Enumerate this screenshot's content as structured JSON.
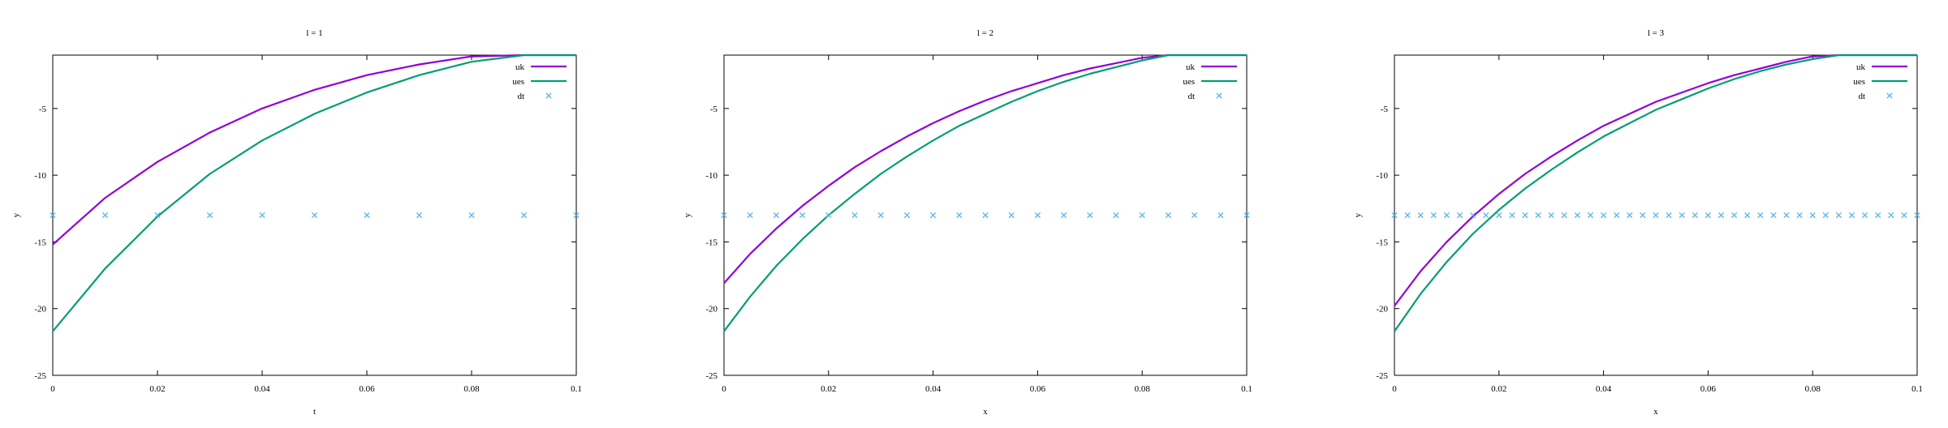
{
  "chart_data": [
    {
      "type": "line",
      "title": "l = 1",
      "xlabel": "t",
      "ylabel": "y",
      "xlim": [
        0,
        0.1
      ],
      "ylim": [
        -25,
        -1
      ],
      "xticks": [
        0,
        0.02,
        0.04,
        0.06,
        0.08,
        0.1
      ],
      "xtick_labels": [
        "0",
        "0.02",
        "0.04",
        "0.06",
        "0.08",
        "0.1"
      ],
      "yticks": [
        -25,
        -20,
        -15,
        -10,
        -5
      ],
      "ytick_labels": [
        "-25",
        "-20",
        "-15",
        "-10",
        "-5"
      ],
      "legend_position": "top-right",
      "series": [
        {
          "name": "uk",
          "kind": "line",
          "color": "#9400d3",
          "x": [
            0,
            0.01,
            0.02,
            0.03,
            0.04,
            0.05,
            0.06,
            0.07,
            0.08,
            0.09,
            0.1
          ],
          "y": [
            -15.2,
            -11.7,
            -9.0,
            -6.8,
            -5.0,
            -3.6,
            -2.5,
            -1.7,
            -1.1,
            -1.0,
            -1.0
          ]
        },
        {
          "name": "ues",
          "kind": "line",
          "color": "#009e73",
          "x": [
            0,
            0.01,
            0.02,
            0.03,
            0.04,
            0.05,
            0.06,
            0.07,
            0.08,
            0.09,
            0.1
          ],
          "y": [
            -21.7,
            -17.0,
            -13.1,
            -9.9,
            -7.4,
            -5.4,
            -3.8,
            -2.5,
            -1.5,
            -1.0,
            -1.0
          ]
        },
        {
          "name": "dt",
          "kind": "points",
          "color": "#56b4e9",
          "x": [
            0,
            0.01,
            0.02,
            0.03,
            0.04,
            0.05,
            0.06,
            0.07,
            0.08,
            0.09,
            0.1
          ],
          "y": [
            -13,
            -13,
            -13,
            -13,
            -13,
            -13,
            -13,
            -13,
            -13,
            -13,
            -13
          ]
        }
      ]
    },
    {
      "type": "line",
      "title": "l = 2",
      "xlabel": "x",
      "ylabel": "y",
      "xlim": [
        0,
        0.1
      ],
      "ylim": [
        -25,
        -1
      ],
      "xticks": [
        0,
        0.02,
        0.04,
        0.06,
        0.08,
        0.1
      ],
      "xtick_labels": [
        "0",
        "0.02",
        "0.04",
        "0.06",
        "0.08",
        "0.1"
      ],
      "yticks": [
        -25,
        -20,
        -15,
        -10,
        -5
      ],
      "ytick_labels": [
        "-25",
        "-20",
        "-15",
        "-10",
        "-5"
      ],
      "legend_position": "top-right",
      "series": [
        {
          "name": "uk",
          "kind": "line",
          "color": "#9400d3",
          "x": [
            0,
            0.005,
            0.01,
            0.015,
            0.02,
            0.025,
            0.03,
            0.035,
            0.04,
            0.045,
            0.05,
            0.055,
            0.06,
            0.065,
            0.07,
            0.075,
            0.08,
            0.085,
            0.09,
            0.095,
            0.1
          ],
          "y": [
            -18.1,
            -15.9,
            -14.0,
            -12.3,
            -10.8,
            -9.4,
            -8.2,
            -7.1,
            -6.1,
            -5.2,
            -4.4,
            -3.7,
            -3.1,
            -2.5,
            -2.0,
            -1.6,
            -1.2,
            -1.0,
            -1.0,
            -1.0,
            -1.0
          ]
        },
        {
          "name": "ues",
          "kind": "line",
          "color": "#009e73",
          "x": [
            0,
            0.005,
            0.01,
            0.015,
            0.02,
            0.025,
            0.03,
            0.035,
            0.04,
            0.045,
            0.05,
            0.055,
            0.06,
            0.065,
            0.07,
            0.075,
            0.08,
            0.085,
            0.09,
            0.095,
            0.1
          ],
          "y": [
            -21.7,
            -19.1,
            -16.8,
            -14.8,
            -13.0,
            -11.4,
            -9.9,
            -8.6,
            -7.4,
            -6.3,
            -5.4,
            -4.5,
            -3.7,
            -3.0,
            -2.4,
            -1.9,
            -1.4,
            -1.0,
            -1.0,
            -1.0,
            -1.0
          ]
        },
        {
          "name": "dt",
          "kind": "points",
          "color": "#56b4e9",
          "x": [
            0,
            0.005,
            0.01,
            0.015,
            0.02,
            0.025,
            0.03,
            0.035,
            0.04,
            0.045,
            0.05,
            0.055,
            0.06,
            0.065,
            0.07,
            0.075,
            0.08,
            0.085,
            0.09,
            0.095,
            0.1
          ],
          "y": [
            -13,
            -13,
            -13,
            -13,
            -13,
            -13,
            -13,
            -13,
            -13,
            -13,
            -13,
            -13,
            -13,
            -13,
            -13,
            -13,
            -13,
            -13,
            -13,
            -13,
            -13
          ]
        }
      ]
    },
    {
      "type": "line",
      "title": "l = 3",
      "xlabel": "x",
      "ylabel": "y",
      "xlim": [
        0,
        0.1
      ],
      "ylim": [
        -25,
        -1
      ],
      "xticks": [
        0,
        0.02,
        0.04,
        0.06,
        0.08,
        0.1
      ],
      "xtick_labels": [
        "0",
        "0.02",
        "0.04",
        "0.06",
        "0.08",
        "0.1"
      ],
      "yticks": [
        -25,
        -20,
        -15,
        -10,
        -5
      ],
      "ytick_labels": [
        "-25",
        "-20",
        "-15",
        "-10",
        "-5"
      ],
      "legend_position": "top-right",
      "series": [
        {
          "name": "uk",
          "kind": "line",
          "color": "#9400d3",
          "x": [
            0,
            0.005,
            0.01,
            0.015,
            0.02,
            0.025,
            0.03,
            0.035,
            0.04,
            0.045,
            0.05,
            0.055,
            0.06,
            0.065,
            0.07,
            0.075,
            0.08,
            0.085,
            0.09,
            0.095,
            0.1
          ],
          "y": [
            -19.8,
            -17.2,
            -15.0,
            -13.1,
            -11.4,
            -9.9,
            -8.6,
            -7.4,
            -6.3,
            -5.4,
            -4.5,
            -3.8,
            -3.1,
            -2.5,
            -2.0,
            -1.5,
            -1.1,
            -1.0,
            -1.0,
            -1.0,
            -1.0
          ]
        },
        {
          "name": "ues",
          "kind": "line",
          "color": "#009e73",
          "x": [
            0,
            0.005,
            0.01,
            0.015,
            0.02,
            0.025,
            0.03,
            0.035,
            0.04,
            0.045,
            0.05,
            0.055,
            0.06,
            0.065,
            0.07,
            0.075,
            0.08,
            0.085,
            0.09,
            0.095,
            0.1
          ],
          "y": [
            -21.7,
            -18.9,
            -16.5,
            -14.4,
            -12.6,
            -11.0,
            -9.6,
            -8.3,
            -7.1,
            -6.1,
            -5.1,
            -4.3,
            -3.5,
            -2.8,
            -2.2,
            -1.7,
            -1.3,
            -1.0,
            -1.0,
            -1.0,
            -1.0
          ]
        },
        {
          "name": "dt",
          "kind": "points",
          "color": "#56b4e9",
          "x": [
            0,
            0.0025,
            0.005,
            0.0075,
            0.01,
            0.0125,
            0.015,
            0.0175,
            0.02,
            0.0225,
            0.025,
            0.0275,
            0.03,
            0.0325,
            0.035,
            0.0375,
            0.04,
            0.0425,
            0.045,
            0.0475,
            0.05,
            0.0525,
            0.055,
            0.0575,
            0.06,
            0.0625,
            0.065,
            0.0675,
            0.07,
            0.0725,
            0.075,
            0.0775,
            0.08,
            0.0825,
            0.085,
            0.0875,
            0.09,
            0.0925,
            0.095,
            0.0975,
            0.1
          ],
          "y": [
            -13,
            -13,
            -13,
            -13,
            -13,
            -13,
            -13,
            -13,
            -13,
            -13,
            -13,
            -13,
            -13,
            -13,
            -13,
            -13,
            -13,
            -13,
            -13,
            -13,
            -13,
            -13,
            -13,
            -13,
            -13,
            -13,
            -13,
            -13,
            -13,
            -13,
            -13,
            -13,
            -13,
            -13,
            -13,
            -13,
            -13,
            -13,
            -13,
            -13,
            -13
          ]
        }
      ]
    }
  ]
}
